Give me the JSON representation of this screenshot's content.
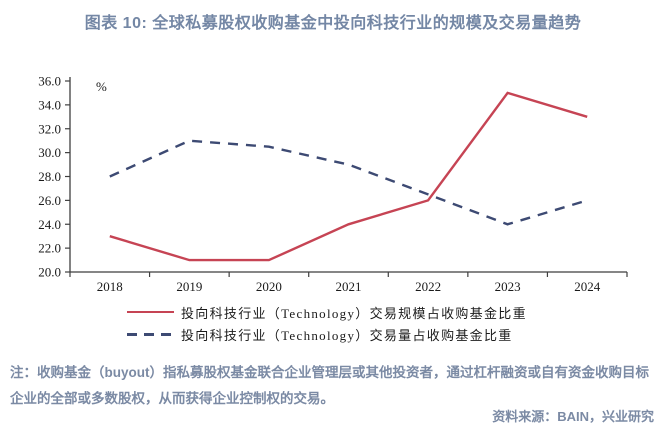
{
  "title": "图表 10: 全球私募股权收购基金中投向科技行业的规模及交易量趋势",
  "chart_data": {
    "type": "line",
    "title": "全球私募股权收购基金中投向科技行业的规模及交易量趋势",
    "unit_label": "%",
    "categories": [
      "2018",
      "2019",
      "2020",
      "2021",
      "2022",
      "2023",
      "2024"
    ],
    "series": [
      {
        "name": "投向科技行业（Technology）交易规模占收购基金比重",
        "line_style": "solid",
        "color": "#C64454",
        "values": [
          23.0,
          21.0,
          21.0,
          24.0,
          26.0,
          35.0,
          33.0
        ]
      },
      {
        "name": "投向科技行业（Technology）交易量占收购基金比重",
        "line_style": "dashed",
        "color": "#3D4A73",
        "values": [
          28.0,
          31.0,
          30.5,
          29.0,
          26.5,
          24.0,
          26.0
        ]
      }
    ],
    "ylim": [
      20,
      36
    ],
    "y_tick_step": 2,
    "y_tick_labels": [
      "20.0",
      "22.0",
      "24.0",
      "26.0",
      "28.0",
      "30.0",
      "32.0",
      "34.0",
      "36.0"
    ],
    "xlabel": "",
    "ylabel": "%",
    "grid": false,
    "legend_position": "bottom",
    "axis_color": "#3f3f3f"
  },
  "note": "注：收购基金（buyout）指私募股权基金联合企业管理层或其他投资者，通过杠杆融资或自有资金收购目标企业的全部或多数股权，从而获得企业控制权的交易。",
  "source": "资料来源：BAIN，兴业研究"
}
